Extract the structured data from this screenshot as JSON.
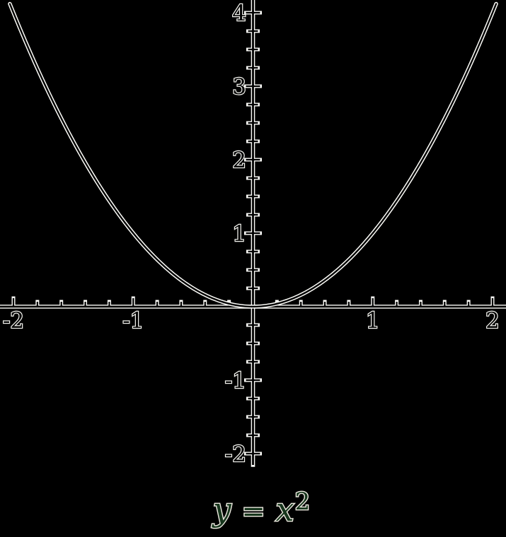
{
  "title": {
    "text": "y = x²",
    "parts": [
      {
        "t": "y",
        "italic": true
      },
      {
        "t": " = ",
        "italic": false
      },
      {
        "t": "x",
        "italic": true
      },
      {
        "t": "2",
        "sup": true
      }
    ]
  },
  "chart_data": {
    "type": "line",
    "title": "y = x²",
    "function": "y = x^2",
    "exponent": 2,
    "xlabel": "",
    "ylabel": "",
    "x_range_visible": [
      -2.11,
      2.11
    ],
    "y_range_visible": [
      -2.15,
      4.17
    ],
    "curve_x_domain": [
      -2.03,
      2.03
    ],
    "grid": false,
    "legend": null,
    "x_axis": {
      "major_ticks": [
        -2,
        -1,
        1,
        2
      ],
      "major_tick_labels": [
        "-2",
        "-1",
        "1",
        "2"
      ],
      "minor_tick_step": 0.2
    },
    "y_axis": {
      "major_ticks": [
        -2,
        -1,
        1,
        2,
        3,
        4
      ],
      "major_tick_labels": [
        "-2",
        "-1",
        "1",
        "2",
        "3",
        "4"
      ],
      "minor_tick_step": 0.25
    },
    "sample_points": [
      [
        -2,
        4
      ],
      [
        -1.75,
        3.0625
      ],
      [
        -1.5,
        2.25
      ],
      [
        -1.25,
        1.5625
      ],
      [
        -1,
        1
      ],
      [
        -0.75,
        0.5625
      ],
      [
        -0.5,
        0.25
      ],
      [
        -0.25,
        0.0625
      ],
      [
        0,
        0
      ],
      [
        0.25,
        0.0625
      ],
      [
        0.5,
        0.25
      ],
      [
        0.75,
        0.5625
      ],
      [
        1,
        1
      ],
      [
        1.25,
        1.5625
      ],
      [
        1.5,
        2.25
      ],
      [
        1.75,
        3.0625
      ],
      [
        2,
        4
      ]
    ],
    "colors": {
      "background": "#000000",
      "line_outline": "#fcfcf8",
      "line_core": "#000000",
      "label_fill": "#000000",
      "label_outline": "#f5f5f0",
      "title_fill": "#17361d",
      "title_outline": "#ece9df"
    }
  }
}
